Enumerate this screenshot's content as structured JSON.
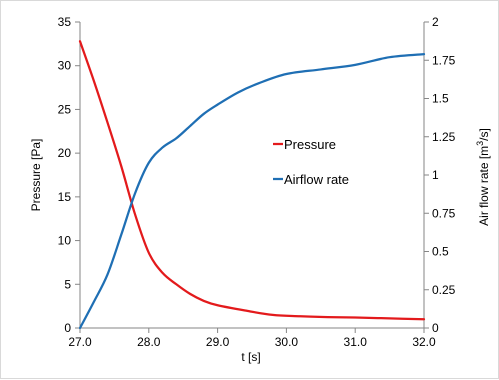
{
  "chart_data": {
    "type": "line",
    "xlabel": "t [s]",
    "ylabel": "Pressure [Pa]",
    "y2label_prefix": "Air flow rate [m",
    "y2label_exp": "3",
    "y2label_suffix": "/s]",
    "xlim": [
      27.0,
      32.0
    ],
    "ylim": [
      0,
      35
    ],
    "y2lim": [
      0,
      2
    ],
    "x_ticks": [
      "27.0",
      "28.0",
      "29.0",
      "30.0",
      "31.0",
      "32.0"
    ],
    "x_tick_values": [
      27,
      28,
      29,
      30,
      31,
      32
    ],
    "y_ticks": [
      "0",
      "5",
      "10",
      "15",
      "20",
      "25",
      "30",
      "35"
    ],
    "y_tick_values": [
      0,
      5,
      10,
      15,
      20,
      25,
      30,
      35
    ],
    "y2_ticks": [
      "0",
      "0.25",
      "0.5",
      "0.75",
      "1",
      "1.25",
      "1.5",
      "1.75",
      "2"
    ],
    "y2_tick_values": [
      0,
      0.25,
      0.5,
      0.75,
      1,
      1.25,
      1.5,
      1.75,
      2
    ],
    "grid": false,
    "legend_position": "center-right",
    "series": [
      {
        "name": "Pressure",
        "axis": "left",
        "color": "#e31a1c",
        "x": [
          27.0,
          27.2,
          27.4,
          27.6,
          27.8,
          28.0,
          28.2,
          28.4,
          28.6,
          28.8,
          29.0,
          29.4,
          29.8,
          30.2,
          30.6,
          31.0,
          31.5,
          32.0
        ],
        "y": [
          32.8,
          28.3,
          23.5,
          18.5,
          13.0,
          8.6,
          6.3,
          5.0,
          3.9,
          3.1,
          2.6,
          2.0,
          1.5,
          1.35,
          1.25,
          1.2,
          1.1,
          1.0
        ]
      },
      {
        "name": "Airflow rate",
        "axis": "right",
        "color": "#1f6fb4",
        "x": [
          27.0,
          27.2,
          27.4,
          27.6,
          27.8,
          28.0,
          28.2,
          28.4,
          28.6,
          28.8,
          29.0,
          29.3,
          29.6,
          30.0,
          30.5,
          31.0,
          31.5,
          32.0
        ],
        "y": [
          0.0,
          0.17,
          0.35,
          0.61,
          0.88,
          1.08,
          1.18,
          1.24,
          1.32,
          1.4,
          1.46,
          1.54,
          1.6,
          1.66,
          1.69,
          1.72,
          1.77,
          1.79
        ]
      }
    ]
  }
}
